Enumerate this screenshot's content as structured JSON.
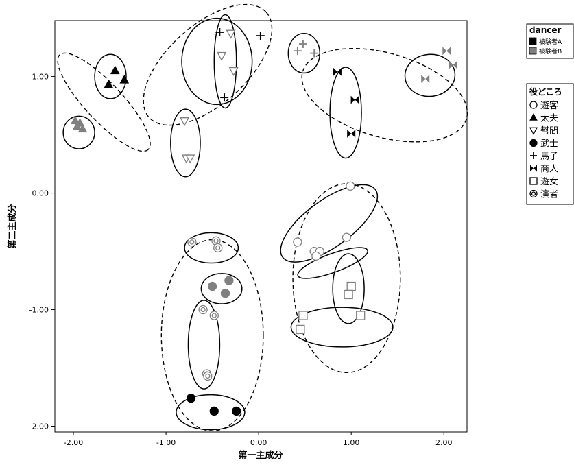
{
  "chart_data": {
    "type": "scatter",
    "title": "",
    "xlabel": "第一主成分",
    "ylabel": "第二主成分",
    "xlim": [
      -2.2,
      2.25
    ],
    "ylim": [
      -2.05,
      1.48
    ],
    "x_ticks": [
      {
        "value": -2.0,
        "label": "-2.00"
      },
      {
        "value": -1.0,
        "label": "-1.00"
      },
      {
        "value": 0.0,
        "label": "0.00"
      },
      {
        "value": 1.0,
        "label": "1.00"
      },
      {
        "value": 2.0,
        "label": "2.00"
      }
    ],
    "y_ticks": [
      {
        "value": 1.0,
        "label": "1.00"
      },
      {
        "value": 0.0,
        "label": "0.00"
      },
      {
        "value": -1.0,
        "label": "-1.00"
      },
      {
        "value": -2.0,
        "label": "-2.00"
      }
    ],
    "grid": false,
    "legend_placement": "right",
    "dancer_legend": {
      "title": "dancer",
      "entries": [
        {
          "label": "被験者A",
          "color": "#000000"
        },
        {
          "label": "被験者B",
          "color": "#808080"
        }
      ]
    },
    "role_legend": {
      "title": "役どころ",
      "entries": [
        {
          "label": "遊客",
          "marker": "circle-open"
        },
        {
          "label": "太夫",
          "marker": "triangle-up"
        },
        {
          "label": "幇間",
          "marker": "triangle-down-open"
        },
        {
          "label": "武士",
          "marker": "circle-filled"
        },
        {
          "label": "馬子",
          "marker": "plus"
        },
        {
          "label": "商人",
          "marker": "bowtie"
        },
        {
          "label": "遊女",
          "marker": "square-open"
        },
        {
          "label": "演者",
          "marker": "double-circle"
        }
      ]
    },
    "points": [
      {
        "role": "太夫",
        "dancer": "被験者A",
        "x": -1.55,
        "y": 1.05
      },
      {
        "role": "太夫",
        "dancer": "被験者A",
        "x": -1.62,
        "y": 0.93
      },
      {
        "role": "太夫",
        "dancer": "被験者A",
        "x": -1.45,
        "y": 0.97
      },
      {
        "role": "太夫",
        "dancer": "被験者B",
        "x": -1.98,
        "y": 0.62
      },
      {
        "role": "太夫",
        "dancer": "被験者B",
        "x": -1.93,
        "y": 0.6
      },
      {
        "role": "太夫",
        "dancer": "被験者B",
        "x": -1.96,
        "y": 0.57
      },
      {
        "role": "太夫",
        "dancer": "被験者B",
        "x": -1.9,
        "y": 0.55
      },
      {
        "role": "幇間",
        "dancer": "被験者B",
        "x": -0.3,
        "y": 1.37
      },
      {
        "role": "幇間",
        "dancer": "被験者B",
        "x": -0.4,
        "y": 1.18
      },
      {
        "role": "幇間",
        "dancer": "被験者B",
        "x": -0.27,
        "y": 1.05
      },
      {
        "role": "幇間",
        "dancer": "被験者B",
        "x": -0.8,
        "y": 0.62
      },
      {
        "role": "幇間",
        "dancer": "被験者B",
        "x": -0.78,
        "y": 0.3
      },
      {
        "role": "幇間",
        "dancer": "被験者B",
        "x": -0.74,
        "y": 0.3
      },
      {
        "role": "馬子",
        "dancer": "被験者A",
        "x": -0.42,
        "y": 1.38
      },
      {
        "role": "馬子",
        "dancer": "被験者A",
        "x": 0.02,
        "y": 1.35
      },
      {
        "role": "馬子",
        "dancer": "被験者A",
        "x": -0.37,
        "y": 0.82
      },
      {
        "role": "馬子",
        "dancer": "被験者B",
        "x": 0.42,
        "y": 1.22
      },
      {
        "role": "馬子",
        "dancer": "被験者B",
        "x": 0.48,
        "y": 1.28
      },
      {
        "role": "馬子",
        "dancer": "被験者B",
        "x": 0.6,
        "y": 1.2
      },
      {
        "role": "商人",
        "dancer": "被験者A",
        "x": 0.85,
        "y": 1.04
      },
      {
        "role": "商人",
        "dancer": "被験者A",
        "x": 1.04,
        "y": 0.8
      },
      {
        "role": "商人",
        "dancer": "被験者A",
        "x": 1.0,
        "y": 0.51
      },
      {
        "role": "商人",
        "dancer": "被験者B",
        "x": 1.8,
        "y": 0.98
      },
      {
        "role": "商人",
        "dancer": "被験者B",
        "x": 2.03,
        "y": 1.22
      },
      {
        "role": "商人",
        "dancer": "被験者B",
        "x": 2.1,
        "y": 1.1
      },
      {
        "role": "遊客",
        "dancer": "被験者B",
        "x": 0.99,
        "y": 0.06
      },
      {
        "role": "遊客",
        "dancer": "被験者B",
        "x": 0.42,
        "y": -0.42
      },
      {
        "role": "遊客",
        "dancer": "被験者B",
        "x": 0.6,
        "y": -0.5
      },
      {
        "role": "遊客",
        "dancer": "被験者B",
        "x": 0.66,
        "y": -0.5
      },
      {
        "role": "遊客",
        "dancer": "被験者B",
        "x": 0.62,
        "y": -0.54
      },
      {
        "role": "遊客",
        "dancer": "被験者B",
        "x": 0.95,
        "y": -0.38
      },
      {
        "role": "演者",
        "dancer": "被験者B",
        "x": -0.72,
        "y": -0.42
      },
      {
        "role": "演者",
        "dancer": "被験者B",
        "x": -0.46,
        "y": -0.41
      },
      {
        "role": "演者",
        "dancer": "被験者B",
        "x": -0.44,
        "y": -0.47
      },
      {
        "role": "演者",
        "dancer": "被験者B",
        "x": -0.6,
        "y": -1.0
      },
      {
        "role": "演者",
        "dancer": "被験者B",
        "x": -0.48,
        "y": -1.05
      },
      {
        "role": "演者",
        "dancer": "被験者B",
        "x": -0.56,
        "y": -1.55
      },
      {
        "role": "演者",
        "dancer": "被験者B",
        "x": -0.55,
        "y": -1.57
      },
      {
        "role": "武士",
        "dancer": "被験者B",
        "x": -0.5,
        "y": -0.8
      },
      {
        "role": "武士",
        "dancer": "被験者B",
        "x": -0.32,
        "y": -0.75
      },
      {
        "role": "武士",
        "dancer": "被験者B",
        "x": -0.36,
        "y": -0.86
      },
      {
        "role": "武士",
        "dancer": "被験者A",
        "x": -0.73,
        "y": -1.76
      },
      {
        "role": "武士",
        "dancer": "被験者A",
        "x": -0.48,
        "y": -1.87
      },
      {
        "role": "武士",
        "dancer": "被験者A",
        "x": -0.24,
        "y": -1.87
      },
      {
        "role": "遊女",
        "dancer": "被験者B",
        "x": 1.0,
        "y": -0.8
      },
      {
        "role": "遊女",
        "dancer": "被験者B",
        "x": 0.97,
        "y": -0.87
      },
      {
        "role": "遊女",
        "dancer": "被験者B",
        "x": 0.48,
        "y": -1.05
      },
      {
        "role": "遊女",
        "dancer": "被験者B",
        "x": 1.1,
        "y": -1.05
      },
      {
        "role": "遊女",
        "dancer": "被験者B",
        "x": 0.45,
        "y": -1.17
      }
    ],
    "group_ellipses": [
      {
        "cx": -1.6,
        "cy": 1.0,
        "rx": 0.17,
        "ry": 0.19,
        "angle": 0,
        "style": "solid"
      },
      {
        "cx": -1.94,
        "cy": 0.52,
        "rx": 0.17,
        "ry": 0.14,
        "angle": 0,
        "style": "solid"
      },
      {
        "cx": -1.67,
        "cy": 0.78,
        "rx": 0.7,
        "ry": 0.16,
        "angle": 47,
        "style": "dashed"
      },
      {
        "cx": -0.36,
        "cy": 1.13,
        "rx": 0.12,
        "ry": 0.4,
        "angle": 0,
        "style": "solid"
      },
      {
        "cx": -0.79,
        "cy": 0.43,
        "rx": 0.16,
        "ry": 0.29,
        "angle": 0,
        "style": "solid"
      },
      {
        "cx": -0.55,
        "cy": 1.1,
        "rx": 0.85,
        "ry": 0.34,
        "angle": -42,
        "style": "dashed"
      },
      {
        "cx": -0.45,
        "cy": 1.13,
        "rx": 0.38,
        "ry": 0.37,
        "angle": 0,
        "style": "solid"
      },
      {
        "cx": 0.49,
        "cy": 1.2,
        "rx": 0.17,
        "ry": 0.17,
        "angle": 0,
        "style": "solid"
      },
      {
        "cx": 0.94,
        "cy": 0.69,
        "rx": 0.17,
        "ry": 0.39,
        "angle": 0,
        "style": "solid"
      },
      {
        "cx": 1.85,
        "cy": 1.01,
        "rx": 0.27,
        "ry": 0.18,
        "angle": -5,
        "style": "solid"
      },
      {
        "cx": 1.36,
        "cy": 0.84,
        "rx": 0.92,
        "ry": 0.36,
        "angle": 16,
        "style": "dashed"
      },
      {
        "cx": -0.51,
        "cy": -0.47,
        "rx": 0.29,
        "ry": 0.13,
        "angle": 0,
        "style": "solid"
      },
      {
        "cx": -0.4,
        "cy": -0.82,
        "rx": 0.22,
        "ry": 0.13,
        "angle": 0,
        "style": "solid"
      },
      {
        "cx": -0.59,
        "cy": -1.3,
        "rx": 0.17,
        "ry": 0.38,
        "angle": 0,
        "style": "solid"
      },
      {
        "cx": -0.52,
        "cy": -1.88,
        "rx": 0.37,
        "ry": 0.15,
        "angle": 0,
        "style": "solid"
      },
      {
        "cx": -0.5,
        "cy": -1.22,
        "rx": 0.55,
        "ry": 0.82,
        "angle": 0,
        "style": "dashed"
      },
      {
        "cx": 0.76,
        "cy": -0.26,
        "rx": 0.62,
        "ry": 0.2,
        "angle": -36,
        "style": "solid"
      },
      {
        "cx": 0.8,
        "cy": -0.6,
        "rx": 0.4,
        "ry": 0.08,
        "angle": -20,
        "style": "solid"
      },
      {
        "cx": 0.97,
        "cy": -0.82,
        "rx": 0.17,
        "ry": 0.3,
        "angle": 0,
        "style": "solid"
      },
      {
        "cx": 0.9,
        "cy": -1.15,
        "rx": 0.55,
        "ry": 0.17,
        "angle": 0,
        "style": "solid"
      },
      {
        "cx": 0.95,
        "cy": -0.73,
        "rx": 0.58,
        "ry": 0.81,
        "angle": 0,
        "style": "dashed"
      }
    ]
  }
}
